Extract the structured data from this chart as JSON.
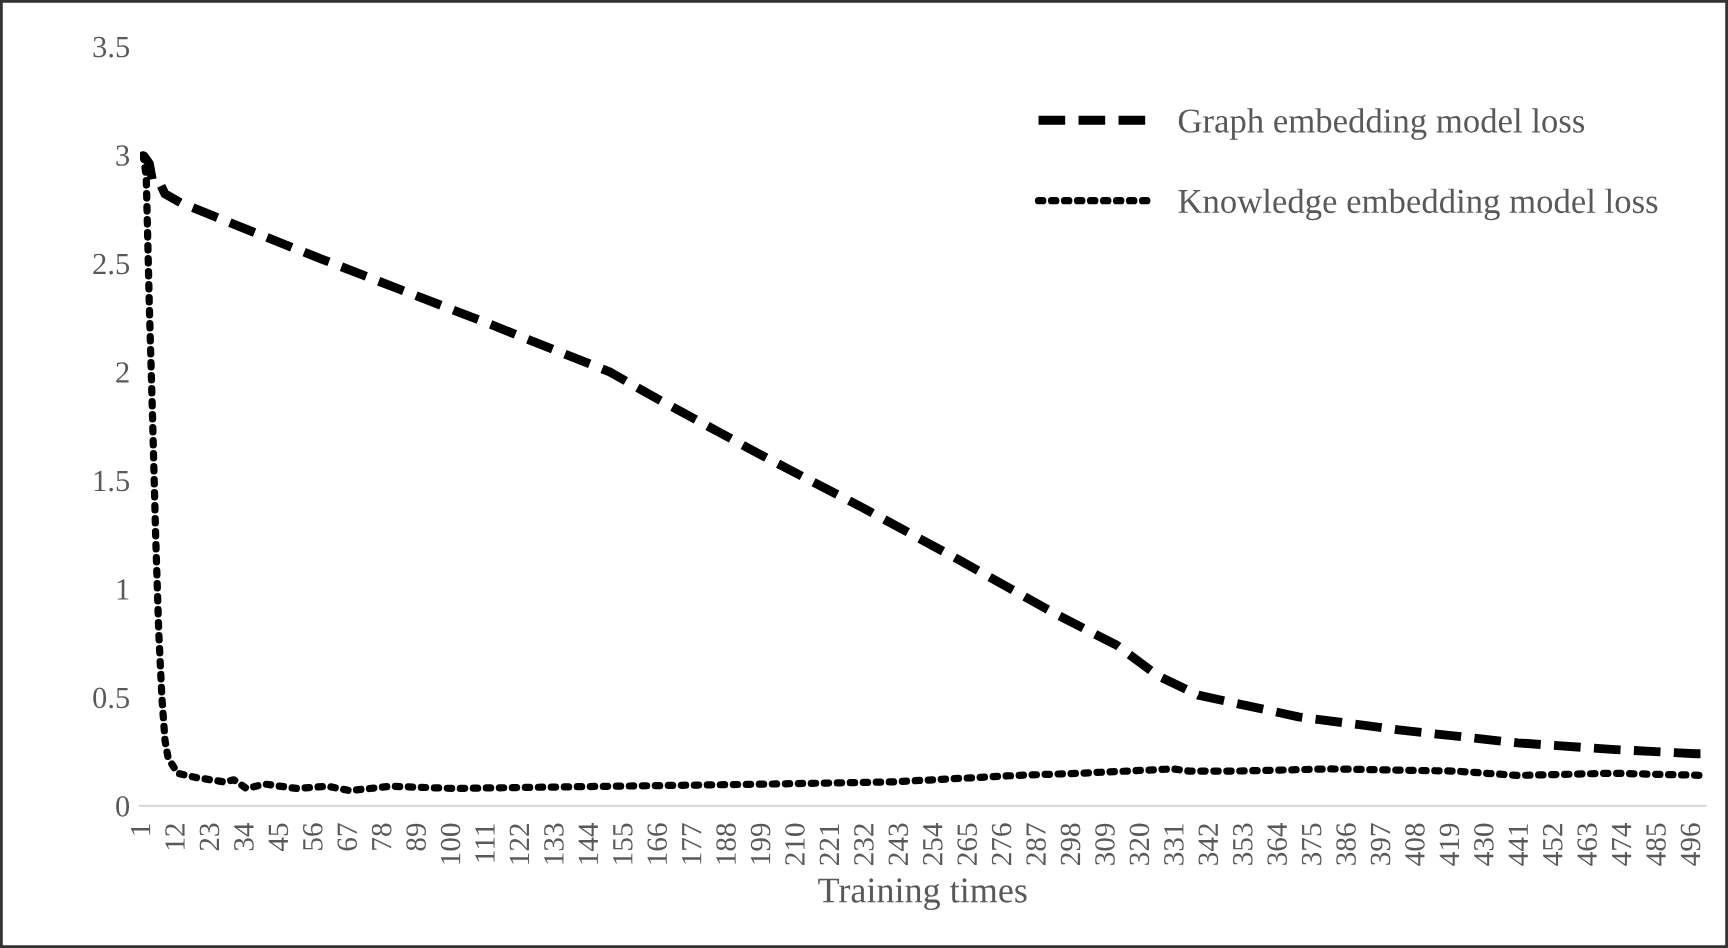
{
  "chart_data": {
    "type": "line",
    "xlabel": "Training times",
    "xlim": [
      0,
      500
    ],
    "xticks": [
      1,
      12,
      23,
      34,
      45,
      56,
      67,
      78,
      89,
      100,
      111,
      122,
      133,
      144,
      155,
      166,
      177,
      188,
      199,
      210,
      221,
      232,
      243,
      254,
      265,
      276,
      287,
      298,
      309,
      320,
      331,
      342,
      353,
      364,
      375,
      386,
      397,
      408,
      419,
      430,
      441,
      452,
      463,
      474,
      485,
      496
    ],
    "ylim": [
      0,
      3.5
    ],
    "yticks": [
      0,
      0.5,
      1,
      1.5,
      2,
      2.5,
      3,
      3.5
    ],
    "grid": false,
    "legend": "top right",
    "marker": "none",
    "series": [
      {
        "name": "Graph embedding model loss",
        "color": "#000000",
        "line_style": "dashed",
        "x": [
          1,
          3,
          4,
          6,
          8,
          13,
          37,
          58,
          83,
          110,
          150,
          166,
          198,
          230,
          262,
          293,
          312,
          325,
          338,
          370,
          402,
          440,
          470,
          497,
          500
        ],
        "values": [
          3.0,
          2.96,
          2.88,
          2.88,
          2.82,
          2.78,
          2.64,
          2.52,
          2.38,
          2.23,
          2.0,
          1.87,
          1.62,
          1.38,
          1.13,
          0.88,
          0.74,
          0.6,
          0.51,
          0.41,
          0.35,
          0.29,
          0.26,
          0.24,
          0.24
        ]
      },
      {
        "name": "Knowledge embedding model loss",
        "color": "#000000",
        "line_style": "dotted",
        "x": [
          1,
          2,
          3,
          4,
          5,
          6,
          7,
          8,
          9,
          12,
          18,
          27,
          30,
          34,
          40,
          50,
          60,
          67,
          80,
          100,
          150,
          200,
          240,
          280,
          300,
          330,
          335,
          350,
          380,
          420,
          440,
          470,
          500
        ],
        "values": [
          3.0,
          2.9,
          2.3,
          1.8,
          1.25,
          0.8,
          0.5,
          0.3,
          0.22,
          0.15,
          0.13,
          0.11,
          0.12,
          0.08,
          0.1,
          0.08,
          0.09,
          0.07,
          0.09,
          0.08,
          0.09,
          0.1,
          0.11,
          0.14,
          0.15,
          0.17,
          0.16,
          0.16,
          0.17,
          0.16,
          0.14,
          0.15,
          0.14
        ]
      }
    ]
  }
}
